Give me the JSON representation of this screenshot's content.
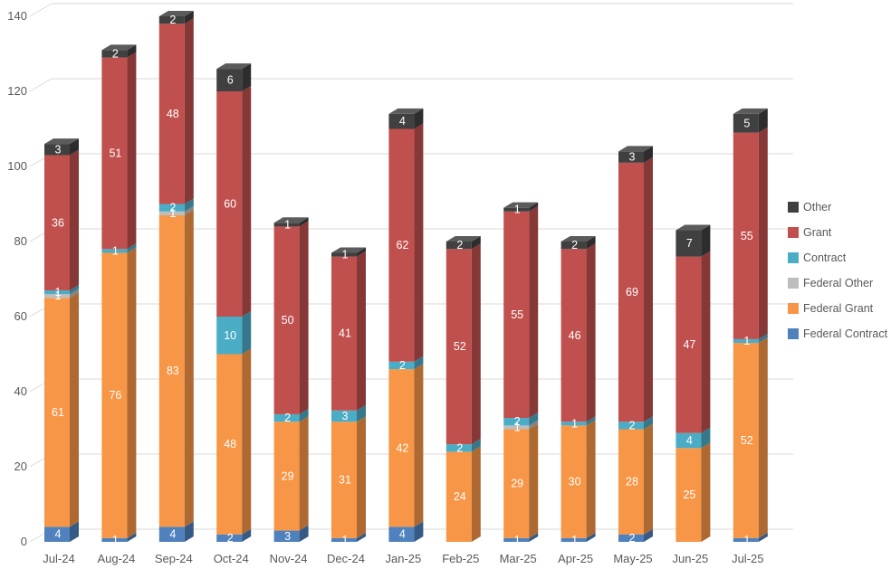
{
  "chart_data": {
    "type": "bar",
    "variant": "3d-stacked-column",
    "title": "",
    "xlabel": "",
    "ylabel": "",
    "categories": [
      "Jul-24",
      "Aug-24",
      "Sep-24",
      "Oct-24",
      "Nov-24",
      "Dec-24",
      "Jan-25",
      "Feb-25",
      "Mar-25",
      "Apr-25",
      "May-25",
      "Jun-25",
      "Jul-25"
    ],
    "series": [
      {
        "name": "Federal Contract",
        "color": "#4F81BD",
        "values": [
          4,
          1,
          4,
          2,
          3,
          1,
          4,
          0,
          1,
          1,
          2,
          0,
          1
        ]
      },
      {
        "name": "Federal Grant",
        "color": "#F79646",
        "values": [
          61,
          76,
          83,
          48,
          29,
          31,
          42,
          24,
          29,
          30,
          28,
          25,
          52
        ]
      },
      {
        "name": "Federal Other",
        "color": "#BDBDBD",
        "values": [
          1,
          0,
          1,
          0,
          0,
          0,
          0,
          0,
          1,
          0,
          0,
          0,
          0
        ]
      },
      {
        "name": "Contract",
        "color": "#4BACC6",
        "values": [
          1,
          1,
          2,
          10,
          2,
          3,
          2,
          2,
          2,
          1,
          2,
          4,
          1
        ]
      },
      {
        "name": "Grant",
        "color": "#C0504D",
        "values": [
          36,
          51,
          48,
          60,
          50,
          41,
          62,
          52,
          55,
          46,
          69,
          47,
          55
        ]
      },
      {
        "name": "Other",
        "color": "#404040",
        "values": [
          3,
          2,
          2,
          6,
          1,
          1,
          4,
          2,
          1,
          2,
          3,
          7,
          5
        ]
      }
    ],
    "totals": [
      106,
      131,
      140,
      126,
      85,
      77,
      114,
      80,
      89,
      80,
      104,
      83,
      114
    ],
    "ylim": [
      0,
      140
    ],
    "yticks": [
      0,
      20,
      40,
      60,
      80,
      100,
      120,
      140
    ],
    "grid": true,
    "data_labels": true,
    "data_label_color": "#FFFFFF",
    "legend_position": "right",
    "legend_order": [
      "Other",
      "Grant",
      "Contract",
      "Federal Other",
      "Federal Grant",
      "Federal Contract"
    ],
    "axis_text_color": "#595959",
    "gridline_color": "#D9D9D9",
    "background_color": "#FFFFFF"
  }
}
